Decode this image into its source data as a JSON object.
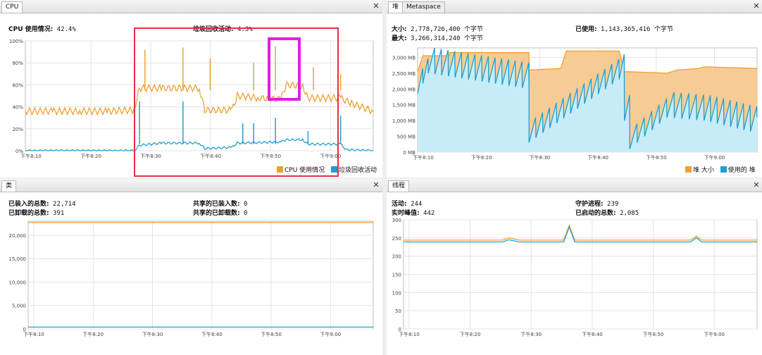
{
  "colors": {
    "orange": "#f0a030",
    "blue": "#20a0d0",
    "red": "#e53040",
    "magenta": "#e020e0",
    "orange_fill": "#f6c98e",
    "blue_fill": "#c7ecf8",
    "grid": "#e3e3e3"
  },
  "cpu": {
    "tab": "CPU",
    "usage_label": "CPU 使用情况:",
    "usage_value": "42.4%",
    "gc_label": "垃圾回收活动:",
    "gc_value": "4.3%",
    "legend_cpu": "CPU 使用情况",
    "legend_gc": "垃圾回收活动"
  },
  "heap": {
    "tab": "堆",
    "tab2": "Metaspace",
    "size_label": "大小:",
    "size_value": "2,778,726,400 个字节",
    "max_label": "最大:",
    "max_value": "3,266,314,240 个字节",
    "used_label": "已使用:",
    "used_value": "1,143,365,416 个字节",
    "legend_size": "堆 大小",
    "legend_used": "使用的 堆"
  },
  "classes": {
    "tab": "类",
    "loaded_label": "已装入的总数:",
    "loaded_value": "22,714",
    "unloaded_label": "已卸载的总数:",
    "unloaded_value": "391",
    "shared_loaded_label": "共享的已装入数:",
    "shared_loaded_value": "0",
    "shared_unloaded_label": "共享的已卸载数:",
    "shared_unloaded_value": "0"
  },
  "threads": {
    "tab": "线程",
    "live_label": "活动:",
    "live_value": "244",
    "peak_label": "实时峰值:",
    "peak_value": "442",
    "daemon_label": "守护进程:",
    "daemon_value": "239",
    "started_label": "已启动的总数:",
    "started_value": "2,085"
  },
  "chart_data": [
    {
      "type": "line",
      "name": "cpu",
      "x_ticks": [
        "下午8:10",
        "下午8:20",
        "下午8:30",
        "下午8:40",
        "下午8:50",
        "下午9:00"
      ],
      "y_ticks": [
        "0%",
        "20%",
        "40%",
        "60%",
        "80%",
        "100%"
      ],
      "ylim": [
        0,
        100
      ],
      "xlim": [
        0,
        64
      ],
      "series": [
        {
          "name": "CPU 使用情况",
          "color": "#f0a030",
          "points": [
            [
              0,
              36
            ],
            [
              5,
              36
            ],
            [
              10,
              36
            ],
            [
              15,
              36
            ],
            [
              20,
              37
            ],
            [
              21,
              57
            ],
            [
              25,
              57
            ],
            [
              32,
              57
            ],
            [
              33,
              37
            ],
            [
              38,
              37
            ],
            [
              39,
              50
            ],
            [
              43,
              48
            ],
            [
              47,
              47
            ],
            [
              48,
              60
            ],
            [
              51,
              59
            ],
            [
              52,
              48
            ],
            [
              58,
              48
            ],
            [
              60,
              43
            ],
            [
              64,
              36
            ]
          ],
          "spikes": [
            [
              22,
              92
            ],
            [
              29,
              94
            ],
            [
              34,
              84
            ],
            [
              42,
              80
            ],
            [
              46,
              95
            ],
            [
              53,
              76
            ],
            [
              58,
              70
            ]
          ]
        },
        {
          "name": "垃圾回收活动",
          "color": "#20a0d0",
          "points": [
            [
              0,
              0
            ],
            [
              20,
              0
            ],
            [
              21,
              5
            ],
            [
              25,
              7
            ],
            [
              32,
              7
            ],
            [
              33,
              2
            ],
            [
              38,
              3
            ],
            [
              39,
              7
            ],
            [
              47,
              8
            ],
            [
              48,
              10
            ],
            [
              51,
              10
            ],
            [
              52,
              6
            ],
            [
              58,
              6
            ],
            [
              59,
              1
            ],
            [
              64,
              0
            ]
          ],
          "spikes": [
            [
              21,
              45
            ],
            [
              29,
              45
            ],
            [
              40,
              25
            ],
            [
              42,
              25
            ],
            [
              46,
              30
            ],
            [
              52,
              18
            ],
            [
              58,
              32
            ]
          ]
        }
      ]
    },
    {
      "type": "area",
      "name": "heap",
      "x_ticks": [
        "下午8:10",
        "下午8:20",
        "下午8:30",
        "下午8:40",
        "下午8:50",
        "下午9:00"
      ],
      "y_ticks": [
        "0 MB",
        "500 MB",
        "1,000 MB",
        "1,500 MB",
        "2,000 MB",
        "2,500 MB",
        "3,000 MB"
      ],
      "ylim": [
        0,
        3300
      ],
      "xlim": [
        0,
        64
      ],
      "series": [
        {
          "name": "堆 大小",
          "color": "#f0a030",
          "points": [
            [
              0,
              2550
            ],
            [
              1,
              3050
            ],
            [
              6,
              3050
            ],
            [
              6,
              3150
            ],
            [
              21,
              3150
            ],
            [
              21,
              2600
            ],
            [
              27,
              2650
            ],
            [
              28,
              3200
            ],
            [
              38,
              3200
            ],
            [
              39,
              2550
            ],
            [
              47,
              2500
            ],
            [
              49,
              2600
            ],
            [
              53,
              2650
            ],
            [
              54,
              2700
            ],
            [
              64,
              2650
            ]
          ]
        },
        {
          "name": "使用的 堆",
          "color": "#20a0d0",
          "points": [
            [
              0,
              2350
            ],
            [
              2,
              3000
            ],
            [
              21,
              2500
            ],
            [
              21,
              800
            ],
            [
              38,
              2800
            ],
            [
              39,
              1500
            ],
            [
              40,
              600
            ],
            [
              47,
              1600
            ],
            [
              54,
              1500
            ],
            [
              64,
              1100
            ]
          ],
          "sawtooth": true
        }
      ]
    },
    {
      "type": "line",
      "name": "classes",
      "x_ticks": [
        "下午8:10",
        "下午8:20",
        "下午8:30",
        "下午8:40",
        "下午8:50",
        "下午9:00"
      ],
      "y_ticks": [
        "0",
        "5,000",
        "10,000",
        "15,000",
        "20,000"
      ],
      "ylim": [
        0,
        23000
      ],
      "xlim": [
        0,
        64
      ],
      "series": [
        {
          "name": "已装入的总数",
          "color": "#f0a030",
          "points": [
            [
              0,
              22714
            ],
            [
              64,
              22714
            ]
          ]
        },
        {
          "name": "已卸载的总数",
          "color": "#20a0d0",
          "points": [
            [
              0,
              391
            ],
            [
              64,
              391
            ]
          ]
        }
      ]
    },
    {
      "type": "line",
      "name": "threads",
      "x_ticks": [
        "下午8:10",
        "下午8:20",
        "下午8:30",
        "下午8:40",
        "下午8:50",
        "下午9:00"
      ],
      "y_ticks": [
        "0",
        "50",
        "100",
        "150",
        "200",
        "250",
        "300"
      ],
      "ylim": [
        0,
        300
      ],
      "xlim": [
        0,
        64
      ],
      "series": [
        {
          "name": "活动",
          "color": "#f0a030",
          "points": [
            [
              0,
              244
            ],
            [
              18,
              244
            ],
            [
              19,
              250
            ],
            [
              21,
              244
            ],
            [
              29,
              244
            ],
            [
              30,
              285
            ],
            [
              31,
              244
            ],
            [
              52,
              244
            ],
            [
              53,
              255
            ],
            [
              54,
              244
            ],
            [
              64,
              244
            ]
          ]
        },
        {
          "name": "守护进程",
          "color": "#20a0d0",
          "points": [
            [
              0,
              239
            ],
            [
              18,
              239
            ],
            [
              19,
              245
            ],
            [
              21,
              239
            ],
            [
              29,
              239
            ],
            [
              30,
              280
            ],
            [
              31,
              239
            ],
            [
              52,
              239
            ],
            [
              53,
              250
            ],
            [
              54,
              239
            ],
            [
              64,
              239
            ]
          ]
        }
      ]
    }
  ]
}
